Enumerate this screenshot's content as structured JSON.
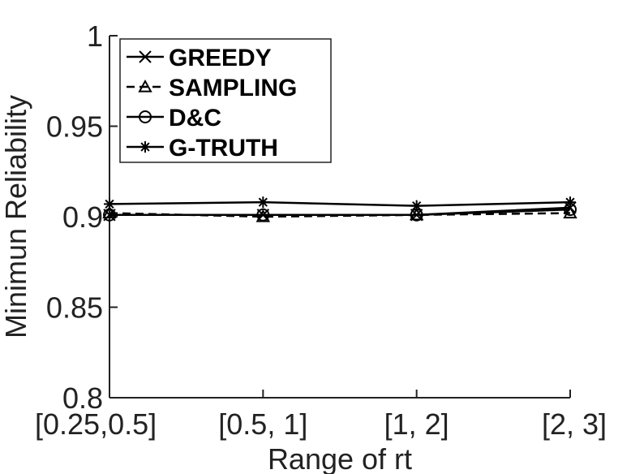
{
  "chart_data": {
    "type": "line",
    "title": "",
    "xlabel": "Range of rt",
    "ylabel": "Minimun Reliability",
    "categories": [
      "[0.25,0.5]",
      "[0.5, 1]",
      "[1, 2]",
      "[2, 3]"
    ],
    "ylim": [
      0.8,
      1
    ],
    "yticks": [
      "0.8",
      "0.85",
      "0.9",
      "0.95",
      "1"
    ],
    "grid": false,
    "legend_position": "top-left",
    "series": [
      {
        "name": "GREEDY",
        "marker": "x",
        "dash": "solid",
        "color": "#000000",
        "values": [
          0.901,
          0.901,
          0.901,
          0.905
        ]
      },
      {
        "name": "SAMPLING",
        "marker": "triangle",
        "dash": "dashed",
        "color": "#000000",
        "values": [
          0.902,
          0.9,
          0.901,
          0.902
        ]
      },
      {
        "name": "D&C",
        "marker": "circle",
        "dash": "solid",
        "color": "#000000",
        "values": [
          0.901,
          0.901,
          0.901,
          0.904
        ]
      },
      {
        "name": "G-TRUTH",
        "marker": "asterisk",
        "dash": "solid",
        "color": "#000000",
        "values": [
          0.907,
          0.908,
          0.906,
          0.908
        ]
      }
    ]
  }
}
